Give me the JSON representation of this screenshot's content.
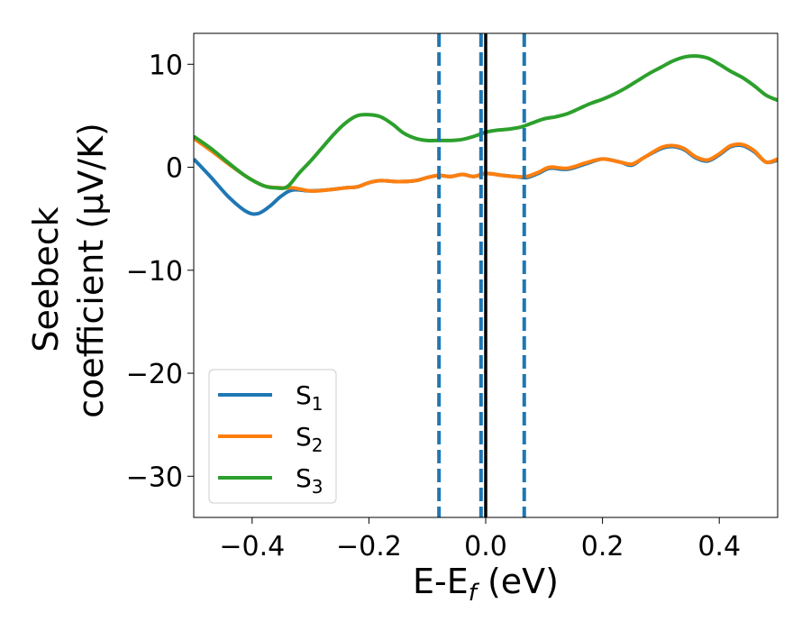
{
  "chart_data": {
    "type": "line",
    "title": "",
    "xlabel": {
      "main": "E-E",
      "sub": "f",
      "unit": " (eV)"
    },
    "ylabel": {
      "line1": "Seebeck",
      "line2": "coefficient  (μV/K)"
    },
    "xlim": [
      -0.5,
      0.5
    ],
    "ylim": [
      -34,
      13
    ],
    "xticks": [
      {
        "value": -0.4,
        "label": "−0.4"
      },
      {
        "value": -0.2,
        "label": "−0.2"
      },
      {
        "value": 0.0,
        "label": "0.0"
      },
      {
        "value": 0.2,
        "label": "0.2"
      },
      {
        "value": 0.4,
        "label": "0.4"
      }
    ],
    "yticks": [
      {
        "value": 10,
        "label": "10"
      },
      {
        "value": 0,
        "label": "0"
      },
      {
        "value": -10,
        "label": "−10"
      },
      {
        "value": -20,
        "label": "−20"
      },
      {
        "value": -30,
        "label": "−30"
      }
    ],
    "grid": false,
    "legend_position": "lower-left",
    "vertical_lines": [
      {
        "x": -0.08,
        "style": "dashed",
        "color": "#1f77b4"
      },
      {
        "x": -0.008,
        "style": "dashed",
        "color": "#1f77b4"
      },
      {
        "x": 0.066,
        "style": "dashed",
        "color": "#1f77b4"
      },
      {
        "x": 0.0,
        "style": "solid",
        "color": "#000000"
      }
    ],
    "series": [
      {
        "name": "S",
        "sub": "1",
        "color": "#1f77b4",
        "points": [
          [
            -0.5,
            0.8
          ],
          [
            -0.47,
            -1.0
          ],
          [
            -0.44,
            -2.9
          ],
          [
            -0.41,
            -4.3
          ],
          [
            -0.39,
            -4.5
          ],
          [
            -0.37,
            -3.8
          ],
          [
            -0.35,
            -2.8
          ],
          [
            -0.33,
            -2.2
          ],
          [
            -0.3,
            -2.3
          ],
          [
            -0.27,
            -2.2
          ],
          [
            -0.24,
            -2.0
          ],
          [
            -0.22,
            -1.9
          ],
          [
            -0.2,
            -1.5
          ],
          [
            -0.18,
            -1.3
          ],
          [
            -0.15,
            -1.4
          ],
          [
            -0.12,
            -1.3
          ],
          [
            -0.1,
            -1.0
          ],
          [
            -0.08,
            -0.8
          ],
          [
            -0.06,
            -0.9
          ],
          [
            -0.04,
            -0.7
          ],
          [
            -0.02,
            -0.9
          ],
          [
            0.0,
            -0.6
          ],
          [
            0.03,
            -0.8
          ],
          [
            0.05,
            -0.9
          ],
          [
            0.07,
            -1.0
          ],
          [
            0.09,
            -0.6
          ],
          [
            0.11,
            -0.1
          ],
          [
            0.14,
            -0.2
          ],
          [
            0.17,
            0.3
          ],
          [
            0.2,
            0.8
          ],
          [
            0.23,
            0.5
          ],
          [
            0.25,
            0.2
          ],
          [
            0.27,
            0.9
          ],
          [
            0.3,
            1.8
          ],
          [
            0.32,
            2.0
          ],
          [
            0.34,
            1.7
          ],
          [
            0.36,
            0.9
          ],
          [
            0.38,
            0.6
          ],
          [
            0.4,
            1.2
          ],
          [
            0.42,
            2.0
          ],
          [
            0.44,
            2.1
          ],
          [
            0.46,
            1.5
          ],
          [
            0.48,
            0.5
          ],
          [
            0.5,
            0.7
          ]
        ]
      },
      {
        "name": "S",
        "sub": "2",
        "color": "#ff7f0e",
        "points": [
          [
            -0.5,
            2.8
          ],
          [
            -0.47,
            1.6
          ],
          [
            -0.44,
            0.3
          ],
          [
            -0.41,
            -0.9
          ],
          [
            -0.38,
            -1.8
          ],
          [
            -0.35,
            -2.0
          ],
          [
            -0.33,
            -2.0
          ],
          [
            -0.3,
            -2.3
          ],
          [
            -0.27,
            -2.2
          ],
          [
            -0.24,
            -2.0
          ],
          [
            -0.22,
            -1.9
          ],
          [
            -0.2,
            -1.5
          ],
          [
            -0.18,
            -1.3
          ],
          [
            -0.15,
            -1.4
          ],
          [
            -0.12,
            -1.3
          ],
          [
            -0.1,
            -1.0
          ],
          [
            -0.08,
            -0.8
          ],
          [
            -0.06,
            -0.9
          ],
          [
            -0.04,
            -0.7
          ],
          [
            -0.02,
            -0.9
          ],
          [
            0.0,
            -0.6
          ],
          [
            0.03,
            -0.8
          ],
          [
            0.05,
            -0.9
          ],
          [
            0.07,
            -0.9
          ],
          [
            0.09,
            -0.5
          ],
          [
            0.11,
            0.0
          ],
          [
            0.14,
            -0.1
          ],
          [
            0.17,
            0.4
          ],
          [
            0.2,
            0.8
          ],
          [
            0.23,
            0.5
          ],
          [
            0.25,
            0.3
          ],
          [
            0.27,
            0.9
          ],
          [
            0.3,
            1.9
          ],
          [
            0.32,
            2.1
          ],
          [
            0.34,
            1.8
          ],
          [
            0.36,
            1.0
          ],
          [
            0.38,
            0.7
          ],
          [
            0.4,
            1.3
          ],
          [
            0.42,
            2.1
          ],
          [
            0.44,
            2.2
          ],
          [
            0.46,
            1.6
          ],
          [
            0.48,
            0.5
          ],
          [
            0.5,
            0.8
          ]
        ]
      },
      {
        "name": "S",
        "sub": "3",
        "color": "#2ca02c",
        "points": [
          [
            -0.5,
            3.0
          ],
          [
            -0.47,
            1.8
          ],
          [
            -0.44,
            0.4
          ],
          [
            -0.41,
            -0.9
          ],
          [
            -0.38,
            -1.8
          ],
          [
            -0.36,
            -2.0
          ],
          [
            -0.34,
            -1.9
          ],
          [
            -0.32,
            -0.6
          ],
          [
            -0.3,
            0.6
          ],
          [
            -0.28,
            1.9
          ],
          [
            -0.26,
            3.2
          ],
          [
            -0.24,
            4.3
          ],
          [
            -0.22,
            5.0
          ],
          [
            -0.2,
            5.1
          ],
          [
            -0.18,
            4.9
          ],
          [
            -0.16,
            4.2
          ],
          [
            -0.14,
            3.3
          ],
          [
            -0.12,
            2.8
          ],
          [
            -0.1,
            2.6
          ],
          [
            -0.08,
            2.6
          ],
          [
            -0.06,
            2.6
          ],
          [
            -0.04,
            2.7
          ],
          [
            -0.02,
            3.0
          ],
          [
            0.0,
            3.4
          ],
          [
            0.02,
            3.6
          ],
          [
            0.04,
            3.7
          ],
          [
            0.06,
            3.9
          ],
          [
            0.08,
            4.3
          ],
          [
            0.1,
            4.7
          ],
          [
            0.12,
            4.9
          ],
          [
            0.14,
            5.2
          ],
          [
            0.16,
            5.7
          ],
          [
            0.18,
            6.2
          ],
          [
            0.2,
            6.6
          ],
          [
            0.22,
            7.1
          ],
          [
            0.24,
            7.7
          ],
          [
            0.26,
            8.4
          ],
          [
            0.28,
            9.1
          ],
          [
            0.3,
            9.7
          ],
          [
            0.32,
            10.3
          ],
          [
            0.34,
            10.7
          ],
          [
            0.36,
            10.8
          ],
          [
            0.38,
            10.6
          ],
          [
            0.4,
            10.0
          ],
          [
            0.42,
            9.3
          ],
          [
            0.44,
            8.7
          ],
          [
            0.46,
            7.9
          ],
          [
            0.48,
            7.0
          ],
          [
            0.5,
            6.5
          ]
        ]
      }
    ]
  }
}
